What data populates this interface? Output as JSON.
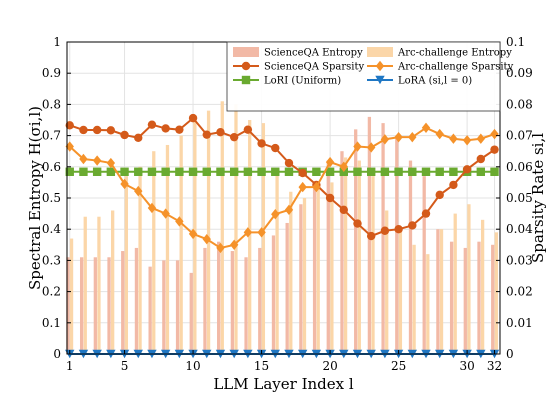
{
  "chart_data": {
    "type": "bar",
    "xlabel": "LLM Layer Index l",
    "ylabel_left": "Spectral Entropy H(σi,l)",
    "ylabel_right": "Sparsity Rate si,l",
    "x": [
      1,
      2,
      3,
      4,
      5,
      6,
      7,
      8,
      9,
      10,
      11,
      12,
      13,
      14,
      15,
      16,
      17,
      18,
      19,
      20,
      21,
      22,
      23,
      24,
      25,
      26,
      27,
      28,
      29,
      30,
      31,
      32
    ],
    "x_ticks": [
      1,
      5,
      10,
      15,
      20,
      25,
      30,
      32
    ],
    "ylim_left": [
      0,
      1
    ],
    "ylim_right": [
      0,
      0.1
    ],
    "yticks_left": [
      "0",
      "0.1",
      "0.2",
      "0.3",
      "0.4",
      "0.5",
      "0.6",
      "0.7",
      "0.8",
      "0.9",
      "1"
    ],
    "yticks_right": [
      "0",
      "0.01",
      "0.02",
      "0.03",
      "0.04",
      "0.05",
      "0.06",
      "0.07",
      "0.08",
      "0.09",
      "0.1"
    ],
    "grid": true,
    "legend_position": "top-right",
    "series": [
      {
        "name": "ScienceQA Entropy",
        "kind": "bar",
        "axis": "left",
        "color": "#f2b9a6",
        "values": [
          0.31,
          0.31,
          0.31,
          0.31,
          0.33,
          0.34,
          0.28,
          0.3,
          0.3,
          0.26,
          0.34,
          0.36,
          0.33,
          0.31,
          0.34,
          0.38,
          0.42,
          0.48,
          0.53,
          0.62,
          0.65,
          0.72,
          0.76,
          0.74,
          0.7,
          0.62,
          0.57,
          0.4,
          0.36,
          0.34,
          0.36,
          0.35
        ]
      },
      {
        "name": "Arc-challenge Entropy",
        "kind": "bar",
        "axis": "left",
        "color": "#fbd6a8",
        "values": [
          0.37,
          0.44,
          0.44,
          0.46,
          0.57,
          0.6,
          0.65,
          0.67,
          0.7,
          0.75,
          0.78,
          0.81,
          0.8,
          0.75,
          0.74,
          0.58,
          0.52,
          0.5,
          0.53,
          0.55,
          0.63,
          0.62,
          0.57,
          0.46,
          0.4,
          0.35,
          0.32,
          0.4,
          0.45,
          0.48,
          0.43,
          0.39
        ]
      },
      {
        "name": "ScienceQA Sparsity",
        "kind": "line",
        "marker": "circle",
        "axis": "right",
        "color": "#d45a1a",
        "values": [
          0.0733,
          0.0718,
          0.0718,
          0.0717,
          0.0702,
          0.0693,
          0.0735,
          0.0723,
          0.0719,
          0.0756,
          0.0703,
          0.0711,
          0.0695,
          0.0719,
          0.0675,
          0.066,
          0.0612,
          0.058,
          0.0542,
          0.05,
          0.0462,
          0.0418,
          0.0378,
          0.0395,
          0.04,
          0.0412,
          0.045,
          0.051,
          0.0542,
          0.0592,
          0.0625,
          0.0655
        ]
      },
      {
        "name": "Arc-challenge Sparsity",
        "kind": "line",
        "marker": "diamond",
        "axis": "right",
        "color": "#f5922a",
        "values": [
          0.0665,
          0.0625,
          0.062,
          0.0612,
          0.0545,
          0.0522,
          0.0468,
          0.045,
          0.0425,
          0.0385,
          0.0368,
          0.034,
          0.035,
          0.039,
          0.039,
          0.0448,
          0.0462,
          0.0535,
          0.0535,
          0.0615,
          0.06,
          0.0665,
          0.0662,
          0.0688,
          0.0695,
          0.0695,
          0.0725,
          0.0705,
          0.069,
          0.0685,
          0.069,
          0.0705
        ]
      },
      {
        "name": "LoRI (Uniform)",
        "kind": "line",
        "marker": "square",
        "axis": "right",
        "color": "#6aaa30",
        "values": [
          0.0584,
          0.0584,
          0.0584,
          0.0584,
          0.0584,
          0.0584,
          0.0584,
          0.0584,
          0.0584,
          0.0584,
          0.0584,
          0.0584,
          0.0584,
          0.0584,
          0.0584,
          0.0584,
          0.0584,
          0.0584,
          0.0584,
          0.0584,
          0.0584,
          0.0584,
          0.0584,
          0.0584,
          0.0584,
          0.0584,
          0.0584,
          0.0584,
          0.0584,
          0.0584,
          0.0584,
          0.0584
        ]
      },
      {
        "name": "LoRA (si,l = 0)",
        "kind": "line",
        "marker": "triangle-down",
        "axis": "right",
        "color": "#1f77c4",
        "values": [
          0,
          0,
          0,
          0,
          0,
          0,
          0,
          0,
          0,
          0,
          0,
          0,
          0,
          0,
          0,
          0,
          0,
          0,
          0,
          0,
          0,
          0,
          0,
          0,
          0,
          0,
          0,
          0,
          0,
          0,
          0,
          0
        ]
      }
    ]
  }
}
